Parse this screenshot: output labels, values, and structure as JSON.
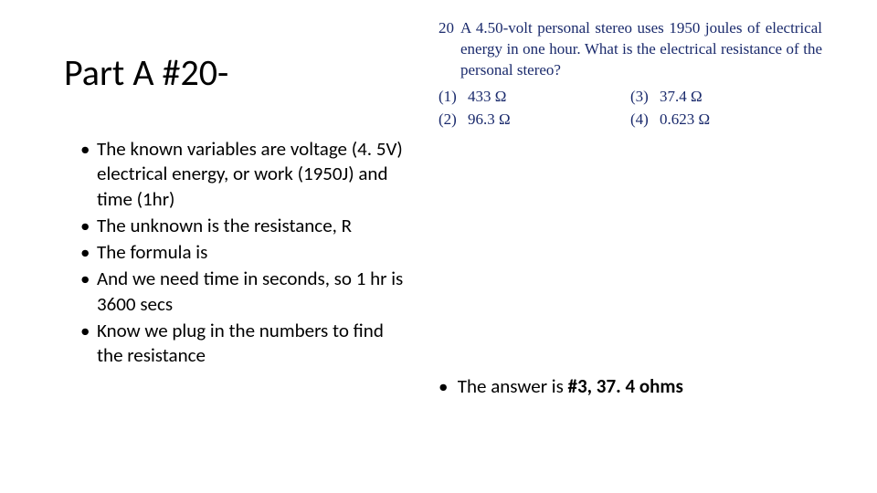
{
  "title": "Part A #20-",
  "left_bullets": [
    "The known variables are voltage (4. 5V) electrical energy, or work (1950J) and time (1hr)",
    "The unknown is the resistance, R",
    "The formula is",
    "And we need time in seconds, so 1 hr is 3600 secs",
    "Know we plug in the numbers to find the resistance"
  ],
  "question": {
    "number": "20",
    "text": "A 4.50-volt personal stereo uses 1950 joules of electrical energy in one hour. What is the electrical resistance of the personal stereo?",
    "answers_left": [
      {
        "label": "(1)",
        "value": "433 Ω"
      },
      {
        "label": "(2)",
        "value": "96.3 Ω"
      }
    ],
    "answers_right": [
      {
        "label": "(3)",
        "value": "37.4 Ω"
      },
      {
        "label": "(4)",
        "value": "0.623 Ω"
      }
    ],
    "color": "#1a2a6c",
    "font_family": "Times New Roman"
  },
  "answer_prefix": "The answer is ",
  "answer_bold": "#3, 37. 4 ohms"
}
